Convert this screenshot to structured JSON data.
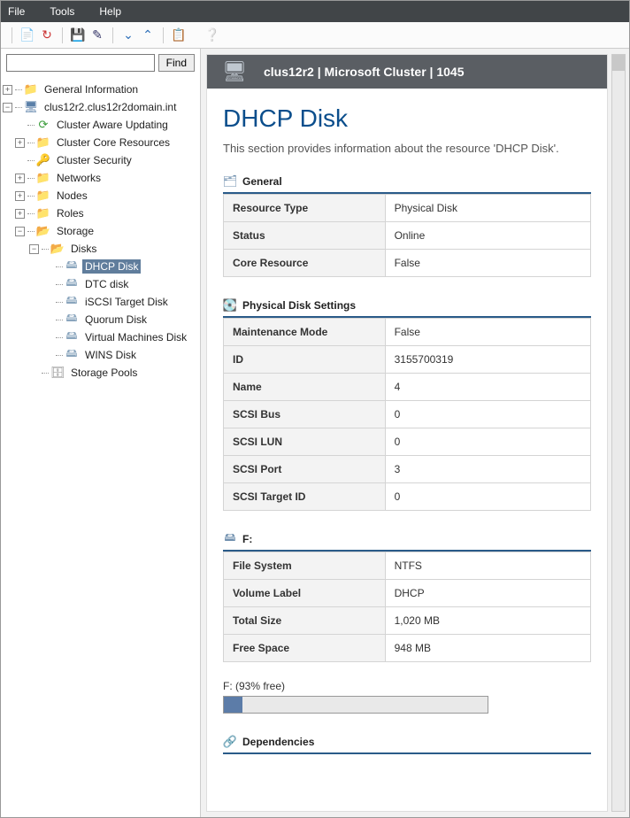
{
  "menu": {
    "file": "File",
    "tools": "Tools",
    "help": "Help"
  },
  "search": {
    "placeholder": "",
    "button": "Find"
  },
  "tree": {
    "general_info": "General Information",
    "cluster": "clus12r2.clus12r2domain.int",
    "cau": "Cluster Aware Updating",
    "ccr": "Cluster Core Resources",
    "cs": "Cluster Security",
    "networks": "Networks",
    "nodes": "Nodes",
    "roles": "Roles",
    "storage": "Storage",
    "disks": "Disks",
    "dhcp": "DHCP Disk",
    "dtc": "DTC disk",
    "iscsi": "iSCSI Target Disk",
    "quorum": "Quorum Disk",
    "vm": "Virtual Machines Disk",
    "wins": "WINS Disk",
    "pools": "Storage Pools"
  },
  "header": {
    "title": "clus12r2 | Microsoft Cluster | 1045"
  },
  "page": {
    "title": "DHCP Disk",
    "desc": "This section provides information about the resource 'DHCP Disk'."
  },
  "sections": {
    "general": {
      "title": "General",
      "rows": [
        {
          "k": "Resource Type",
          "v": "Physical Disk"
        },
        {
          "k": "Status",
          "v": "Online"
        },
        {
          "k": "Core Resource",
          "v": "False"
        }
      ]
    },
    "pds": {
      "title": "Physical Disk Settings",
      "rows": [
        {
          "k": "Maintenance Mode",
          "v": "False"
        },
        {
          "k": "ID",
          "v": "3155700319"
        },
        {
          "k": "Name",
          "v": "4"
        },
        {
          "k": "SCSI Bus",
          "v": "0"
        },
        {
          "k": "SCSI LUN",
          "v": "0"
        },
        {
          "k": "SCSI Port",
          "v": "3"
        },
        {
          "k": "SCSI Target ID",
          "v": "0"
        }
      ]
    },
    "drive": {
      "title": "F:",
      "rows": [
        {
          "k": "File System",
          "v": "NTFS"
        },
        {
          "k": "Volume Label",
          "v": "DHCP"
        },
        {
          "k": "Total Size",
          "v": "1,020 MB"
        },
        {
          "k": "Free Space",
          "v": "948 MB"
        }
      ],
      "bar_label": "F: (93% free)",
      "used_pct": 7
    },
    "deps": {
      "title": "Dependencies"
    }
  },
  "colors": {
    "accent": "#2a5b89",
    "title": "#0b4e8c",
    "selection": "#607d9c",
    "bar_fill": "#5c7ca8"
  }
}
